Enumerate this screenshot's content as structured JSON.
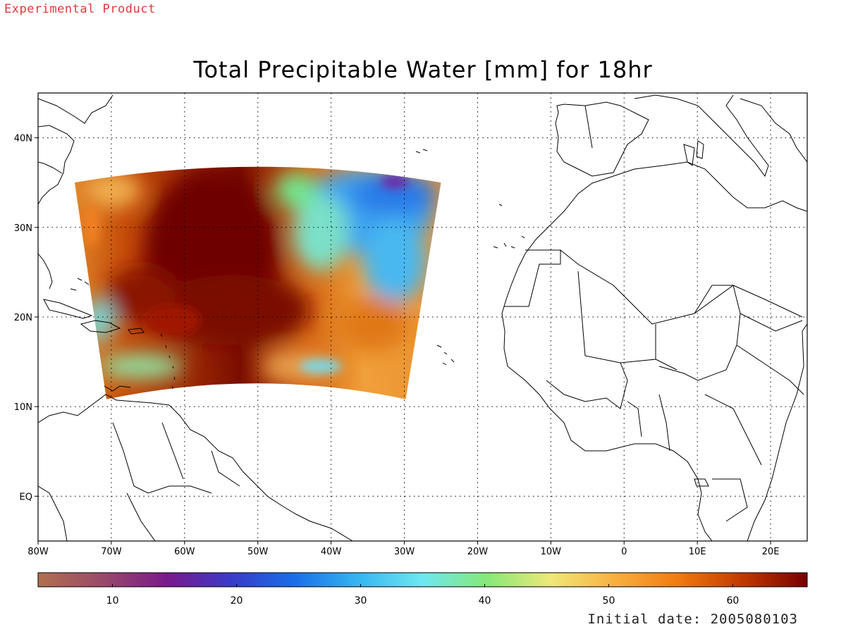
{
  "banner": "Experimental Product",
  "title": "Total Precipitable Water [mm] for 18hr",
  "footer": "Initial date: 2005080103",
  "map": {
    "lon_range": [
      -80,
      25
    ],
    "lat_range": [
      -5,
      45
    ],
    "lon_ticks": [
      {
        "value": -80,
        "label": "80W"
      },
      {
        "value": -70,
        "label": "70W"
      },
      {
        "value": -60,
        "label": "60W"
      },
      {
        "value": -50,
        "label": "50W"
      },
      {
        "value": -40,
        "label": "40W"
      },
      {
        "value": -30,
        "label": "30W"
      },
      {
        "value": -20,
        "label": "20W"
      },
      {
        "value": -10,
        "label": "10W"
      },
      {
        "value": 0,
        "label": "0"
      },
      {
        "value": 10,
        "label": "10E"
      },
      {
        "value": 20,
        "label": "20E"
      }
    ],
    "lat_ticks": [
      {
        "value": 0,
        "label": "EQ"
      },
      {
        "value": 10,
        "label": "10N"
      },
      {
        "value": 20,
        "label": "20N"
      },
      {
        "value": 30,
        "label": "30N"
      },
      {
        "value": 40,
        "label": "40N"
      }
    ],
    "grid": "dotted",
    "field_domain": {
      "lon": [
        -75,
        -25
      ],
      "lat_north": 35,
      "lat_south": 12
    },
    "field_features": [
      {
        "name": "moist plume",
        "center": [
          -55,
          25
        ],
        "value_mm": 65
      },
      {
        "name": "dry area",
        "center": [
          -38,
          31
        ],
        "value_mm": 28
      },
      {
        "name": "dry core",
        "center": [
          -30,
          35
        ],
        "value_mm": 20
      }
    ]
  },
  "colorbar": {
    "range": [
      4,
      66
    ],
    "ticks": [
      {
        "value": 10,
        "label": "10"
      },
      {
        "value": 20,
        "label": "20"
      },
      {
        "value": 30,
        "label": "30"
      },
      {
        "value": 40,
        "label": "40"
      },
      {
        "value": 50,
        "label": "50"
      },
      {
        "value": 60,
        "label": "60"
      }
    ],
    "stops": [
      "#b07050",
      "#9a4a6a",
      "#7a1a8a",
      "#3a3ac8",
      "#1a6ee8",
      "#36b6f0",
      "#6ee8f0",
      "#86e878",
      "#eee878",
      "#f8b040",
      "#f07a10",
      "#c03800",
      "#760000"
    ]
  }
}
